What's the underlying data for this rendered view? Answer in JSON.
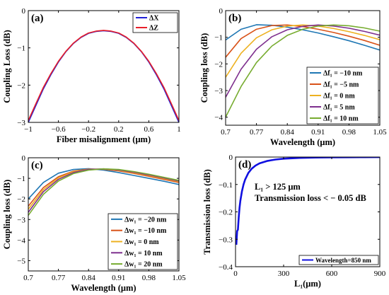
{
  "figure": {
    "panels": [
      {
        "id": "a",
        "panel_label": "(a)",
        "xlabel": "Fiber misalignment (μm)",
        "ylabel": "Coupling Loss (dB)",
        "xticks": [
          "−1",
          "−0.6",
          "−0.2",
          "0.2",
          "0.6",
          "1"
        ],
        "yticks": [
          "0",
          "−1",
          "−2",
          "−3"
        ],
        "legend": [
          "ΔX",
          "ΔZ"
        ]
      },
      {
        "id": "b",
        "panel_label": "(b)",
        "xlabel": "Wavelength (μm)",
        "ylabel": "Coupling loss (dB)",
        "xticks": [
          "0.7",
          "0.77",
          "0.84",
          "0.91",
          "0.98",
          "1.05"
        ],
        "yticks": [
          "0",
          "−1",
          "−2",
          "−3",
          "−4"
        ],
        "legend": [
          "Δf₁ = −10 nm",
          "Δf₁ = −5 nm",
          "Δf₁ = 0 nm",
          "Δf₁ = 5 nm",
          "Δf₁ = 10 nm"
        ]
      },
      {
        "id": "c",
        "panel_label": "(c)",
        "xlabel": "Wavelength (μm)",
        "ylabel": "Coupling loss (dB)",
        "xticks": [
          "0.7",
          "0.77",
          "0.84",
          "0.91",
          "0.98",
          "1.05"
        ],
        "yticks": [
          "0",
          "−1",
          "−2",
          "−3",
          "−4",
          "−5"
        ],
        "legend": [
          "Δw₁ = −20 nm",
          "Δw₁ = −10 nm",
          "Δw₁ = 0 nm",
          "Δw₁ = 10 nm",
          "Δw₁ = 20 nm"
        ]
      },
      {
        "id": "d",
        "panel_label": "(d)",
        "xlabel": "L₁(μm)",
        "ylabel": "Transmission loss (dB)",
        "xticks": [
          "0",
          "300",
          "600",
          "900"
        ],
        "yticks": [
          "0",
          "−0.1",
          "−0.2",
          "−0.3",
          "−0.4"
        ],
        "legend": [
          "Wavelength=850 nm"
        ],
        "annotation": [
          "L₁ > 125 μm",
          "Transmission loss < − 0.05 dB"
        ]
      }
    ]
  },
  "chart_data": [
    {
      "type": "line",
      "panel": "a",
      "xlabel": "Fiber misalignment (μm)",
      "ylabel": "Coupling Loss (dB)",
      "xlim": [
        -1,
        1
      ],
      "ylim": [
        -3,
        0
      ],
      "grid": false,
      "legend_position": "top-right",
      "series": [
        {
          "name": "ΔX",
          "color": "#1f1fd6",
          "x": [
            -1,
            -0.9,
            -0.8,
            -0.7,
            -0.6,
            -0.5,
            -0.4,
            -0.3,
            -0.2,
            -0.1,
            0,
            0.1,
            0.2,
            0.3,
            0.4,
            0.5,
            0.6,
            0.7,
            0.8,
            0.9,
            1
          ],
          "y": [
            -3.0,
            -2.55,
            -2.1,
            -1.72,
            -1.38,
            -1.1,
            -0.88,
            -0.72,
            -0.61,
            -0.56,
            -0.54,
            -0.56,
            -0.61,
            -0.72,
            -0.88,
            -1.1,
            -1.38,
            -1.72,
            -2.1,
            -2.55,
            -3.0
          ]
        },
        {
          "name": "ΔZ",
          "color": "#e8202a",
          "x": [
            -1,
            -0.9,
            -0.8,
            -0.7,
            -0.6,
            -0.5,
            -0.4,
            -0.3,
            -0.2,
            -0.1,
            0,
            0.1,
            0.2,
            0.3,
            0.4,
            0.5,
            0.6,
            0.7,
            0.8,
            0.9,
            1
          ],
          "y": [
            -2.95,
            -2.5,
            -2.06,
            -1.69,
            -1.36,
            -1.09,
            -0.87,
            -0.71,
            -0.6,
            -0.55,
            -0.53,
            -0.55,
            -0.6,
            -0.71,
            -0.87,
            -1.09,
            -1.36,
            -1.69,
            -2.06,
            -2.5,
            -2.95
          ]
        }
      ]
    },
    {
      "type": "line",
      "panel": "b",
      "xlabel": "Wavelength (μm)",
      "ylabel": "Coupling loss (dB)",
      "xlim": [
        0.7,
        1.05
      ],
      "ylim": [
        -4.3,
        0
      ],
      "grid": false,
      "legend_position": "bottom-right",
      "series": [
        {
          "name": "Δf₁ = −10 nm",
          "color": "#1f77b4",
          "x": [
            0.7,
            0.735,
            0.77,
            0.805,
            0.84,
            0.875,
            0.91,
            0.945,
            0.98,
            1.015,
            1.05
          ],
          "y": [
            -1.1,
            -0.7,
            -0.53,
            -0.55,
            -0.62,
            -0.72,
            -0.84,
            -0.98,
            -1.13,
            -1.3,
            -1.48
          ]
        },
        {
          "name": "Δf₁ = −5 nm",
          "color": "#d95319",
          "x": [
            0.7,
            0.735,
            0.77,
            0.805,
            0.84,
            0.875,
            0.91,
            0.945,
            0.98,
            1.015,
            1.05
          ],
          "y": [
            -1.75,
            -1.05,
            -0.7,
            -0.56,
            -0.54,
            -0.6,
            -0.7,
            -0.82,
            -0.96,
            -1.12,
            -1.3
          ]
        },
        {
          "name": "Δf₁ = 0 nm",
          "color": "#edb120",
          "x": [
            0.7,
            0.735,
            0.77,
            0.805,
            0.84,
            0.875,
            0.91,
            0.945,
            0.98,
            1.015,
            1.05
          ],
          "y": [
            -2.5,
            -1.6,
            -1.02,
            -0.72,
            -0.58,
            -0.54,
            -0.58,
            -0.67,
            -0.79,
            -0.93,
            -1.09
          ]
        },
        {
          "name": "Δf₁ = 5 nm",
          "color": "#7e2f8e",
          "x": [
            0.7,
            0.735,
            0.77,
            0.805,
            0.84,
            0.875,
            0.91,
            0.945,
            0.98,
            1.015,
            1.05
          ],
          "y": [
            -3.25,
            -2.2,
            -1.45,
            -0.98,
            -0.72,
            -0.59,
            -0.54,
            -0.58,
            -0.66,
            -0.78,
            -0.92
          ]
        },
        {
          "name": "Δf₁ = 10 nm",
          "color": "#77ac30",
          "x": [
            0.7,
            0.735,
            0.77,
            0.805,
            0.84,
            0.875,
            0.91,
            0.945,
            0.98,
            1.015,
            1.05
          ],
          "y": [
            -4.0,
            -2.85,
            -1.95,
            -1.33,
            -0.93,
            -0.7,
            -0.58,
            -0.54,
            -0.57,
            -0.65,
            -0.77
          ]
        }
      ]
    },
    {
      "type": "line",
      "panel": "c",
      "xlabel": "Wavelength (μm)",
      "ylabel": "Coupling loss (dB)",
      "xlim": [
        0.7,
        1.05
      ],
      "ylim": [
        -5.5,
        0
      ],
      "grid": false,
      "legend_position": "bottom-right",
      "series": [
        {
          "name": "Δw₁ = −20 nm",
          "color": "#1f77b4",
          "x": [
            0.7,
            0.735,
            0.77,
            0.805,
            0.84,
            0.875,
            0.91,
            0.945,
            0.98,
            1.015,
            1.05
          ],
          "y": [
            -2.0,
            -1.2,
            -0.75,
            -0.57,
            -0.53,
            -0.6,
            -0.72,
            -0.86,
            -1.0,
            -1.14,
            -1.3
          ]
        },
        {
          "name": "Δw₁ = −10 nm",
          "color": "#d95319",
          "x": [
            0.7,
            0.735,
            0.77,
            0.805,
            0.84,
            0.875,
            0.91,
            0.945,
            0.98,
            1.015,
            1.05
          ],
          "y": [
            -2.35,
            -1.45,
            -0.92,
            -0.65,
            -0.55,
            -0.56,
            -0.64,
            -0.76,
            -0.9,
            -1.05,
            -1.2
          ]
        },
        {
          "name": "Δw₁ = 0 nm",
          "color": "#edb120",
          "x": [
            0.7,
            0.735,
            0.77,
            0.805,
            0.84,
            0.875,
            0.91,
            0.945,
            0.98,
            1.015,
            1.05
          ],
          "y": [
            -2.5,
            -1.55,
            -0.98,
            -0.68,
            -0.56,
            -0.55,
            -0.61,
            -0.73,
            -0.86,
            -1.01,
            -1.16
          ]
        },
        {
          "name": "Δw₁ = 10 nm",
          "color": "#7e2f8e",
          "x": [
            0.7,
            0.735,
            0.77,
            0.805,
            0.84,
            0.875,
            0.91,
            0.945,
            0.98,
            1.015,
            1.05
          ],
          "y": [
            -2.65,
            -1.65,
            -1.05,
            -0.72,
            -0.57,
            -0.54,
            -0.59,
            -0.7,
            -0.83,
            -0.98,
            -1.13
          ]
        },
        {
          "name": "Δw₁ = 20 nm",
          "color": "#77ac30",
          "x": [
            0.7,
            0.735,
            0.77,
            0.805,
            0.84,
            0.875,
            0.91,
            0.945,
            0.98,
            1.015,
            1.05
          ],
          "y": [
            -2.8,
            -1.78,
            -1.13,
            -0.77,
            -0.6,
            -0.54,
            -0.57,
            -0.67,
            -0.8,
            -0.95,
            -1.1
          ]
        }
      ]
    },
    {
      "type": "line",
      "panel": "d",
      "xlabel": "L₁(μm)",
      "ylabel": "Transmission loss (dB)",
      "xlim": [
        0,
        900
      ],
      "ylim": [
        -0.4,
        0
      ],
      "grid": false,
      "legend_position": "bottom-right",
      "series": [
        {
          "name": "Wavelength=850 nm",
          "color": "#1010e0",
          "x": [
            5,
            10,
            15,
            20,
            25,
            30,
            40,
            50,
            60,
            80,
            100,
            125,
            150,
            200,
            250,
            300,
            400,
            500,
            600,
            700,
            800,
            900
          ],
          "y": [
            -0.32,
            -0.27,
            -0.265,
            -0.22,
            -0.185,
            -0.16,
            -0.125,
            -0.1,
            -0.082,
            -0.058,
            -0.043,
            -0.031,
            -0.023,
            -0.014,
            -0.009,
            -0.006,
            -0.003,
            -0.0018,
            -0.0011,
            -0.0007,
            -0.0005,
            -0.0003
          ]
        }
      ]
    }
  ]
}
